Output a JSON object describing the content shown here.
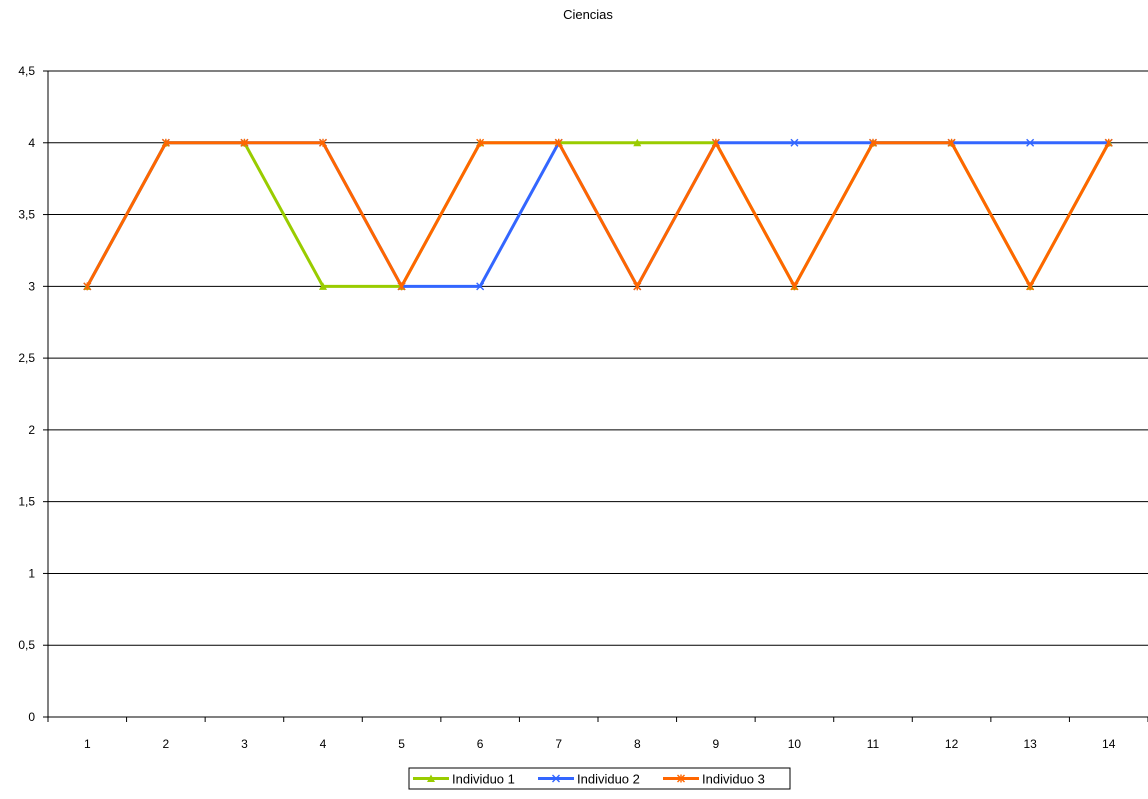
{
  "chart_data": {
    "type": "line",
    "title": "Ciencias",
    "xlabel": "",
    "ylabel": "",
    "categories": [
      "1",
      "2",
      "3",
      "4",
      "5",
      "6",
      "7",
      "8",
      "9",
      "10",
      "11",
      "12",
      "13",
      "14"
    ],
    "ylim": [
      0,
      4.5
    ],
    "yticks": [
      {
        "value": 0,
        "label": "0"
      },
      {
        "value": 0.5,
        "label": "0,5"
      },
      {
        "value": 1,
        "label": "1"
      },
      {
        "value": 1.5,
        "label": "1,5"
      },
      {
        "value": 2,
        "label": "2"
      },
      {
        "value": 2.5,
        "label": "2,5"
      },
      {
        "value": 3,
        "label": "3"
      },
      {
        "value": 3.5,
        "label": "3,5"
      },
      {
        "value": 4,
        "label": "4"
      },
      {
        "value": 4.5,
        "label": "4,5"
      }
    ],
    "grid": "horizontal",
    "legend": "bottom-center",
    "series": [
      {
        "name": "Individuo 1",
        "color": "#99cc00",
        "marker": "triangle",
        "values": [
          3,
          4,
          4,
          3,
          3,
          4,
          4,
          4,
          4,
          3,
          4,
          4,
          3,
          4
        ]
      },
      {
        "name": "Individuo 2",
        "color": "#3366ff",
        "marker": "x",
        "values": [
          3,
          4,
          4,
          4,
          3,
          3,
          4,
          3,
          4,
          4,
          4,
          4,
          4,
          4
        ]
      },
      {
        "name": "Individuo 3",
        "color": "#ff6600",
        "marker": "star",
        "values": [
          3,
          4,
          4,
          4,
          3,
          4,
          4,
          3,
          4,
          3,
          4,
          4,
          3,
          4
        ]
      }
    ]
  }
}
